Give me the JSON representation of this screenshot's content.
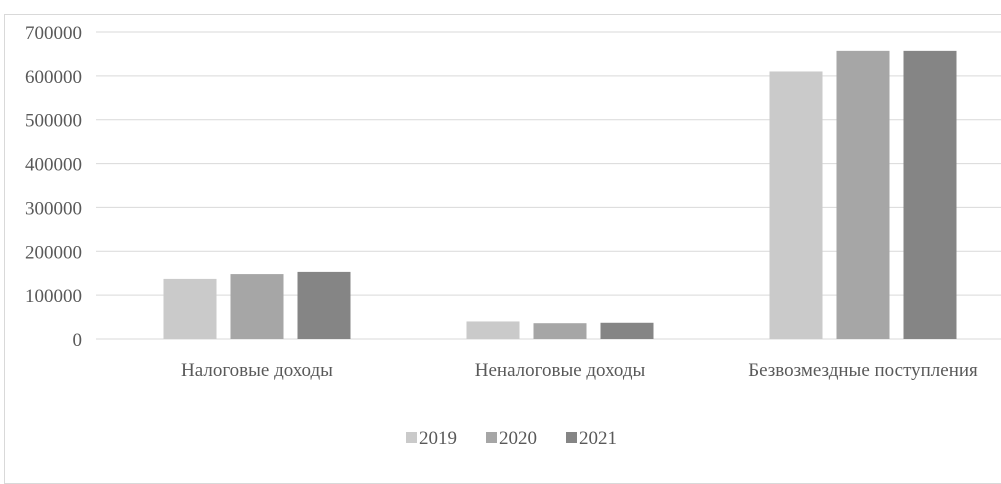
{
  "chart_data": {
    "type": "bar",
    "categories": [
      "Налоговые доходы",
      "Неналоговые доходы",
      "Безвозмездные поступления"
    ],
    "series": [
      {
        "name": "2019",
        "values": [
          137000,
          40000,
          610000
        ]
      },
      {
        "name": "2020",
        "values": [
          148000,
          36000,
          657000
        ]
      },
      {
        "name": "2021",
        "values": [
          153000,
          37000,
          657000
        ]
      }
    ],
    "ylim": [
      0,
      700000
    ],
    "yticks": [
      0,
      100000,
      200000,
      300000,
      400000,
      500000,
      600000,
      700000
    ],
    "ytick_labels": [
      "0",
      "100000",
      "200000",
      "300000",
      "400000",
      "500000",
      "600000",
      "700000"
    ],
    "grid": true,
    "legend_position": "bottom",
    "colors": [
      "#cacaca",
      "#a6a6a6",
      "#858585"
    ]
  }
}
